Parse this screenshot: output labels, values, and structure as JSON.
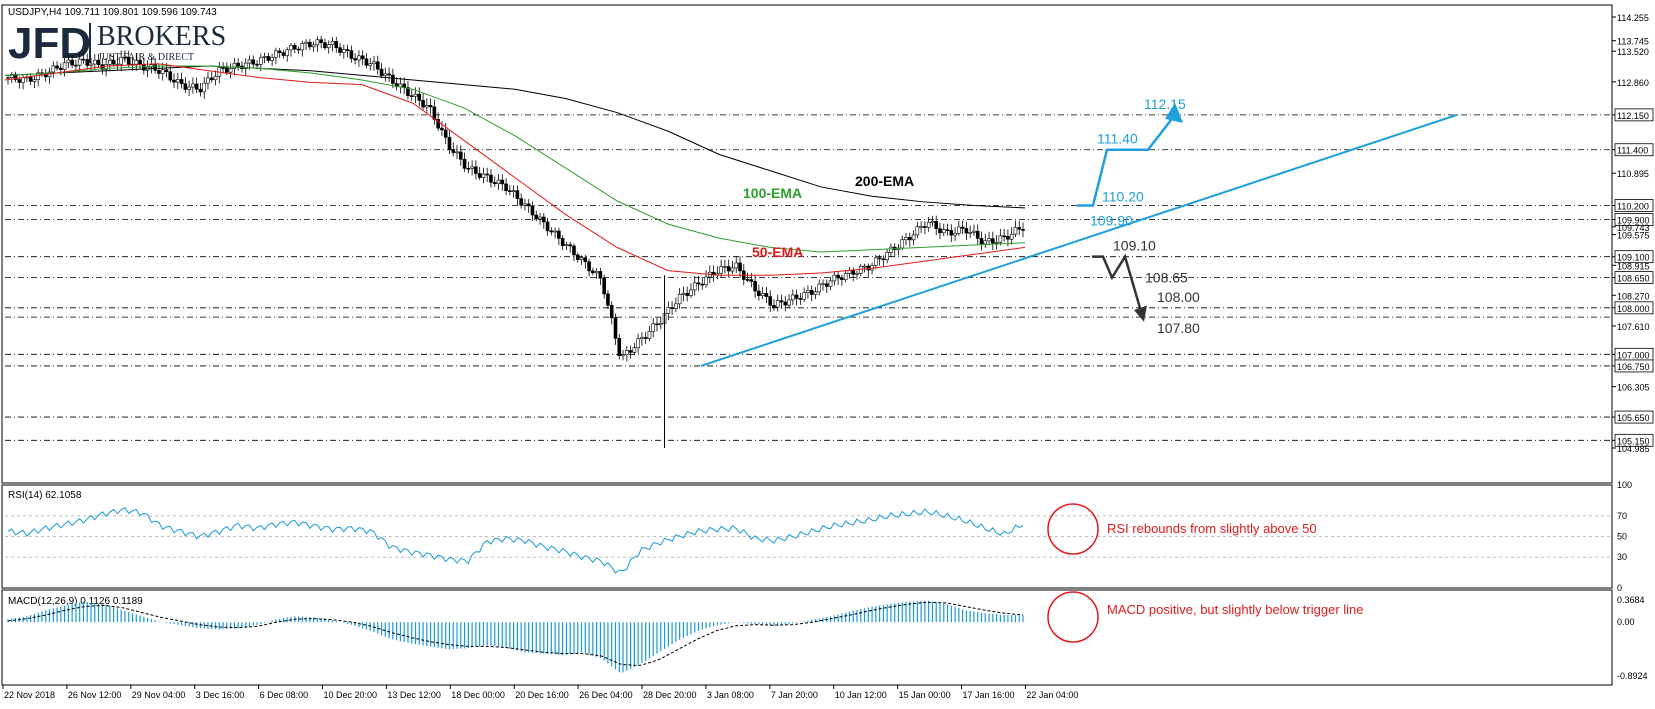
{
  "header": {
    "symbol_line": "USDJPY,H4  109.711 109.801 109.596 109.743"
  },
  "logo": {
    "brand": "JFD",
    "name": "BROKERS",
    "tagline": "JUST FAIR & DIRECT"
  },
  "chart_data": [
    {
      "type": "candlestick",
      "panel": "price",
      "symbol": "USDJPY",
      "timeframe": "H4",
      "ohlc_last": {
        "open": 109.711,
        "high": 109.801,
        "low": 109.596,
        "close": 109.743
      },
      "ylim": [
        104.985,
        114.255
      ],
      "axis_ticks": [
        "114.255",
        "113.745",
        "113.520",
        "112.860",
        "112.150",
        "111.400",
        "110.895",
        "110.200",
        "109.900",
        "109.743",
        "109.575",
        "109.100",
        "108.915",
        "108.650",
        "108.270",
        "108.000",
        "107.610",
        "107.000",
        "106.750",
        "106.305",
        "105.650",
        "105.150",
        "104.985"
      ],
      "x_ticks": [
        "22 Nov 2018",
        "26 Nov 12:00",
        "29 Nov 04:00",
        "3 Dec 16:00",
        "6 Dec 08:00",
        "10 Dec 20:00",
        "13 Dec 12:00",
        "18 Dec 00:00",
        "20 Dec 16:00",
        "26 Dec 04:00",
        "28 Dec 20:00",
        "3 Jan 08:00",
        "7 Jan 20:00",
        "10 Jan 12:00",
        "15 Jan 00:00",
        "17 Jan 16:00",
        "22 Jan 04:00"
      ],
      "close_path": [
        112.95,
        112.9,
        113.05,
        113.25,
        113.3,
        113.2,
        113.35,
        113.2,
        113.1,
        112.8,
        112.7,
        113.1,
        113.2,
        113.3,
        113.45,
        113.6,
        113.7,
        113.65,
        113.4,
        113.25,
        112.9,
        112.6,
        112.3,
        111.5,
        111.0,
        110.8,
        110.6,
        110.2,
        109.8,
        109.4,
        109.0,
        108.6,
        106.9,
        107.3,
        107.7,
        108.2,
        108.5,
        108.8,
        108.9,
        108.4,
        108.05,
        108.2,
        108.35,
        108.6,
        108.75,
        108.9,
        109.2,
        109.5,
        109.85,
        109.6,
        109.7,
        109.4,
        109.5,
        109.743
      ],
      "ema": [
        {
          "name": "200-EMA",
          "color": "#000000",
          "values": [
            113.0,
            113.05,
            113.1,
            113.15,
            113.2,
            113.15,
            113.1,
            113.0,
            112.9,
            112.8,
            112.7,
            112.5,
            112.2,
            111.8,
            111.3,
            110.95,
            110.6,
            110.4,
            110.28,
            110.2,
            110.15
          ]
        },
        {
          "name": "100-EMA",
          "color": "#2ca02c",
          "values": [
            113.0,
            113.05,
            113.15,
            113.2,
            113.2,
            113.15,
            113.05,
            112.9,
            112.7,
            112.3,
            111.7,
            111.0,
            110.3,
            109.8,
            109.5,
            109.3,
            109.2,
            109.25,
            109.3,
            109.35,
            109.4
          ]
        },
        {
          "name": "50-EMA",
          "color": "#e31a1c",
          "values": [
            112.9,
            113.05,
            113.2,
            113.25,
            113.1,
            112.95,
            112.85,
            112.8,
            112.4,
            111.6,
            110.8,
            110.0,
            109.3,
            108.8,
            108.7,
            108.7,
            108.75,
            108.85,
            109.0,
            109.15,
            109.3
          ]
        }
      ],
      "horizontal_levels": [
        "112.150",
        "111.400",
        "110.200",
        "109.900",
        "109.100",
        "108.650",
        "108.000",
        "107.800",
        "107.000",
        "106.750",
        "105.650",
        "105.150"
      ],
      "scenarios": {
        "bullish": {
          "color": "#1ea0dc",
          "labels": [
            "110.20",
            "109.90",
            "111.40",
            "112.15"
          ]
        },
        "bearish": {
          "color": "#333333",
          "labels": [
            "109.10",
            "108.65",
            "108.00",
            "107.80"
          ]
        }
      },
      "trendline": {
        "color": "#1ea0dc",
        "from": 106.75,
        "to": 112.15
      }
    },
    {
      "type": "line",
      "panel": "rsi",
      "title": "RSI(14) 62.1058",
      "ylim": [
        0,
        100
      ],
      "y_ticks": [
        "100",
        "70",
        "50",
        "30",
        "0"
      ],
      "levels": [
        70,
        50,
        30
      ],
      "values": [
        55,
        53,
        58,
        62,
        66,
        72,
        76,
        73,
        60,
        55,
        50,
        55,
        61,
        58,
        62,
        64,
        60,
        57,
        58,
        55,
        40,
        35,
        32,
        28,
        26,
        45,
        48,
        46,
        40,
        36,
        30,
        26,
        14,
        36,
        44,
        50,
        55,
        57,
        58,
        48,
        46,
        50,
        55,
        60,
        63,
        66,
        70,
        72,
        74,
        70,
        65,
        58,
        52,
        62.1
      ],
      "color": "#1a9ad6",
      "annotation": "RSI rebounds from slightly above 50"
    },
    {
      "type": "bar+line",
      "panel": "macd",
      "title": "MACD(12,26,9) 0.1126 0.1189",
      "y_ticks": [
        "0.3684",
        "0.00",
        "-0.8924"
      ],
      "histogram": [
        0.05,
        0.1,
        0.2,
        0.28,
        0.34,
        0.3,
        0.2,
        0.1,
        0.0,
        -0.05,
        -0.1,
        -0.12,
        -0.1,
        -0.05,
        0.05,
        0.1,
        0.08,
        0.03,
        -0.05,
        -0.15,
        -0.28,
        -0.35,
        -0.4,
        -0.45,
        -0.43,
        -0.38,
        -0.42,
        -0.5,
        -0.52,
        -0.55,
        -0.5,
        -0.6,
        -0.85,
        -0.7,
        -0.5,
        -0.3,
        -0.15,
        -0.05,
        0.0,
        -0.03,
        -0.06,
        -0.02,
        0.04,
        0.1,
        0.18,
        0.25,
        0.3,
        0.34,
        0.36,
        0.3,
        0.2,
        0.15,
        0.12,
        0.1126
      ],
      "signal": [
        0.02,
        0.06,
        0.12,
        0.2,
        0.26,
        0.28,
        0.24,
        0.16,
        0.08,
        0.02,
        -0.04,
        -0.08,
        -0.09,
        -0.07,
        0.0,
        0.05,
        0.06,
        0.04,
        0.0,
        -0.07,
        -0.17,
        -0.25,
        -0.32,
        -0.37,
        -0.4,
        -0.4,
        -0.42,
        -0.46,
        -0.5,
        -0.52,
        -0.52,
        -0.56,
        -0.7,
        -0.72,
        -0.62,
        -0.45,
        -0.28,
        -0.14,
        -0.06,
        -0.04,
        -0.05,
        -0.04,
        0.0,
        0.06,
        0.12,
        0.19,
        0.25,
        0.3,
        0.33,
        0.32,
        0.26,
        0.2,
        0.15,
        0.1189
      ],
      "hist_color": "#1a9ad6",
      "signal_color": "#000000",
      "annotation": "MACD positive, but slightly below trigger line"
    }
  ],
  "labels": {
    "ema200": "200-EMA",
    "ema100": "100-EMA",
    "ema50": "50-EMA"
  }
}
